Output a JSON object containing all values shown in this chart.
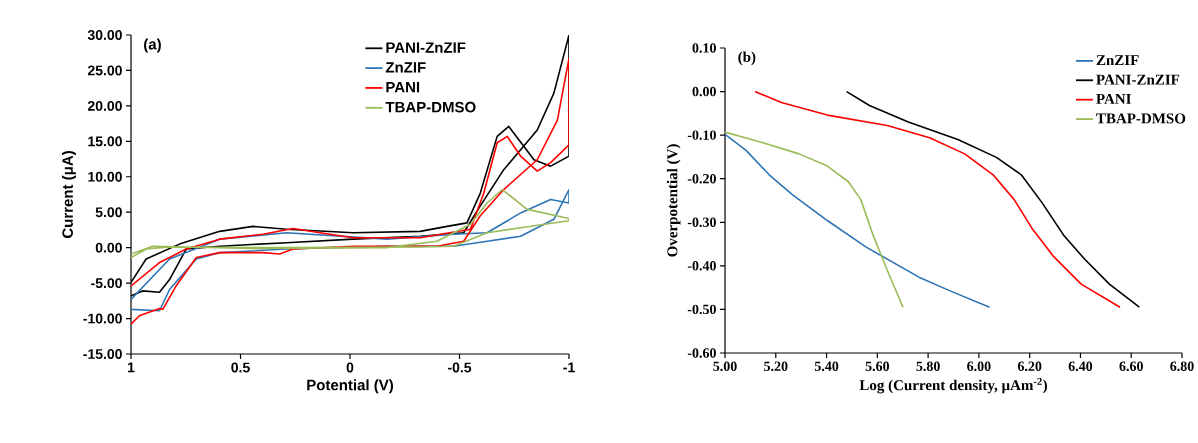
{
  "chart_data": [
    {
      "type": "line",
      "xlabel": "Potential (V)",
      "ylabel": "Current (μA)",
      "annotations": [
        "(a)"
      ],
      "legend": "top right",
      "xlim": [
        1,
        -1
      ],
      "xticks": [
        1,
        0.5,
        0,
        -0.5,
        -1
      ],
      "ylim": [
        -15,
        30
      ],
      "yticks": [
        {
          "value": -15,
          "label": "-15.00"
        },
        {
          "value": -10,
          "label": "-10.00"
        },
        {
          "value": -5,
          "label": "-5.00"
        },
        {
          "value": 0,
          "label": "0.00"
        },
        {
          "value": 5,
          "label": "5.00"
        },
        {
          "value": 10,
          "label": "10.00"
        },
        {
          "value": 15,
          "label": "15.00"
        },
        {
          "value": 20,
          "label": "20.00"
        },
        {
          "value": 25,
          "label": "25.00"
        },
        {
          "value": 30,
          "label": "30.00"
        }
      ],
      "series": [
        {
          "name": "PANI-ZnZIF",
          "color": "#000000",
          "x": [
            1,
            0.947,
            0.87,
            0.824,
            0.748,
            0.595,
            0.29,
            -0.015,
            -0.321,
            -0.519,
            -0.595,
            -0.702,
            -0.855,
            -0.931,
            -1,
            -1,
            -0.916,
            -0.84,
            -0.725,
            -0.672,
            -0.595,
            -0.534,
            -0.443,
            -0.321,
            -0.015,
            0.29,
            0.443,
            0.595,
            0.779,
            0.931,
            1
          ],
          "values": [
            -6.8,
            -6.1,
            -6.3,
            -4.5,
            -0.2,
            0.2,
            0.7,
            1.2,
            1.6,
            2.1,
            5.9,
            11,
            16.6,
            21.8,
            30,
            12.9,
            11.5,
            12.4,
            17.1,
            15.7,
            7.7,
            3.5,
            3.0,
            2.3,
            2.1,
            2.6,
            3.0,
            2.3,
            0.5,
            -1.6,
            -4.9
          ]
        },
        {
          "name": "ZnZIF",
          "color": "#2e75b6",
          "x": [
            1,
            0.87,
            0.824,
            0.702,
            0.595,
            0.29,
            -0.168,
            -0.473,
            -0.626,
            -0.779,
            -0.931,
            -1,
            -1,
            -0.916,
            -0.779,
            -0.626,
            -0.473,
            -0.168,
            0.29,
            0.595,
            0.824,
            1
          ],
          "values": [
            -8.7,
            -8.9,
            -5.9,
            -1.6,
            -0.7,
            -0.2,
            0.2,
            0.2,
            0.9,
            1.6,
            4.0,
            8.2,
            6.3,
            6.8,
            4.9,
            2.1,
            1.9,
            1.2,
            2.1,
            1.2,
            -1.6,
            -7.3
          ]
        },
        {
          "name": "PANI",
          "color": "#ff0000",
          "x": [
            1,
            0.962,
            0.87,
            0.855,
            0.794,
            0.702,
            0.595,
            0.397,
            0.321,
            0.26,
            -0.015,
            -0.397,
            -0.519,
            -0.595,
            -0.702,
            -0.855,
            -0.947,
            -1,
            -1,
            -0.916,
            -0.855,
            -0.779,
            -0.718,
            -0.672,
            -0.611,
            -0.55,
            -0.321,
            -0.015,
            0.137,
            0.26,
            0.397,
            0.595,
            0.748,
            0.87,
            1
          ],
          "values": [
            -10.8,
            -9.6,
            -8.6,
            -8.7,
            -5.4,
            -1.4,
            -0.7,
            -0.7,
            -0.9,
            -0.2,
            0.2,
            0.2,
            0.9,
            4.5,
            8.2,
            12.4,
            18.0,
            26.7,
            14.5,
            12.0,
            10.8,
            12.9,
            15.7,
            14.8,
            7.7,
            2.6,
            1.4,
            1.4,
            2.1,
            2.7,
            1.9,
            1.2,
            -0.2,
            -2.1,
            -5.4
          ]
        },
        {
          "name": "TBAP-DMSO",
          "color": "#9bbb59",
          "x": [
            1,
            0.931,
            0.824,
            0.29,
            -0.321,
            -0.473,
            -0.626,
            -0.779,
            -1,
            -1,
            -0.809,
            -0.695,
            -0.626,
            -0.55,
            -0.397,
            -0.168,
            0.443,
            0.901,
            1
          ],
          "values": [
            -1.4,
            -0.2,
            0.1,
            0,
            0.1,
            0.2,
            2.1,
            2.8,
            3.8,
            4.1,
            5.4,
            8.2,
            6.3,
            3.3,
            0.9,
            0,
            -0.1,
            0.2,
            -0.9
          ]
        }
      ]
    },
    {
      "type": "line",
      "xlabel": "Log (Current density, μAm$^{-2}$)",
      "ylabel": "Overpotential (V)",
      "annotations": [
        "(b)"
      ],
      "legend": "top right",
      "xlim": [
        5,
        6.8
      ],
      "xticks": [
        {
          "value": 5,
          "label": "5.00"
        },
        {
          "value": 5.2,
          "label": "5.20"
        },
        {
          "value": 5.4,
          "label": "5.40"
        },
        {
          "value": 5.6,
          "label": "5.60"
        },
        {
          "value": 5.8,
          "label": "5.80"
        },
        {
          "value": 6,
          "label": "6.00"
        },
        {
          "value": 6.2,
          "label": "6.20"
        },
        {
          "value": 6.4,
          "label": "6.40"
        },
        {
          "value": 6.6,
          "label": "6.60"
        },
        {
          "value": 6.8,
          "label": "6.80"
        }
      ],
      "ylim": [
        -0.6,
        0.1
      ],
      "yticks": [
        {
          "value": -0.6,
          "label": "-0.60"
        },
        {
          "value": -0.5,
          "label": "-0.50"
        },
        {
          "value": -0.4,
          "label": "-0.40"
        },
        {
          "value": -0.3,
          "label": "-0.30"
        },
        {
          "value": -0.2,
          "label": "-0.20"
        },
        {
          "value": -0.1,
          "label": "-0.10"
        },
        {
          "value": 0,
          "label": "0.00"
        },
        {
          "value": 0.1,
          "label": "0.10"
        }
      ],
      "series": [
        {
          "name": "ZnZIF",
          "color": "#2e75b6",
          "x": [
            5.0,
            5.083,
            5.174,
            5.264,
            5.403,
            5.556,
            5.764,
            5.889,
            6.042
          ],
          "values": [
            -0.098,
            -0.135,
            -0.191,
            -0.236,
            -0.296,
            -0.357,
            -0.426,
            -0.458,
            -0.495
          ]
        },
        {
          "name": "PANI-ZnZIF",
          "color": "#000000",
          "x": [
            5.479,
            5.569,
            5.722,
            5.917,
            6.069,
            6.167,
            6.25,
            6.333,
            6.417,
            6.514,
            6.632
          ],
          "values": [
            0.0,
            -0.032,
            -0.07,
            -0.11,
            -0.151,
            -0.191,
            -0.256,
            -0.329,
            -0.385,
            -0.442,
            -0.495
          ]
        },
        {
          "name": "PANI",
          "color": "#ff0000",
          "x": [
            5.118,
            5.222,
            5.403,
            5.639,
            5.806,
            5.944,
            6.056,
            6.139,
            6.208,
            6.292,
            6.403,
            6.556
          ],
          "values": [
            0.0,
            -0.025,
            -0.054,
            -0.078,
            -0.106,
            -0.143,
            -0.191,
            -0.248,
            -0.313,
            -0.377,
            -0.442,
            -0.495
          ]
        },
        {
          "name": "TBAP-DMSO",
          "color": "#9bbb59",
          "x": [
            5.0,
            5.153,
            5.292,
            5.403,
            5.486,
            5.535,
            5.583,
            5.639,
            5.701
          ],
          "values": [
            -0.093,
            -0.118,
            -0.143,
            -0.171,
            -0.207,
            -0.248,
            -0.329,
            -0.41,
            -0.495
          ]
        }
      ]
    }
  ]
}
